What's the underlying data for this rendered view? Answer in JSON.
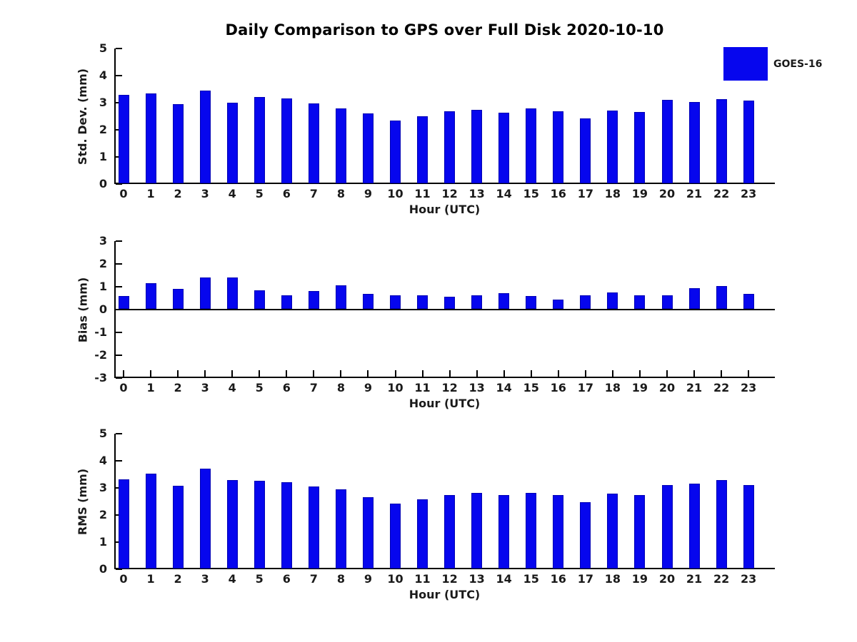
{
  "title": "Daily Comparison to GPS over Full Disk 2020-10-10",
  "legend": {
    "label": "GOES-16",
    "swatch_color": "#0606ee"
  },
  "colors": {
    "bar": "#0606ee",
    "bar_edge": "#0000b4",
    "axis": "#000000",
    "text": "#1a1a1a"
  },
  "chart_data": [
    {
      "type": "bar",
      "name": "std-dev",
      "ylabel": "Std. Dev. (mm)",
      "xlabel": "Hour (UTC)",
      "ylim": [
        0,
        5
      ],
      "yticks": [
        0,
        1,
        2,
        3,
        4,
        5
      ],
      "grid": false,
      "legend_position": "upper-right-outside",
      "categories": [
        "0",
        "1",
        "2",
        "3",
        "4",
        "5",
        "6",
        "7",
        "8",
        "9",
        "10",
        "11",
        "12",
        "13",
        "14",
        "15",
        "16",
        "17",
        "18",
        "19",
        "20",
        "21",
        "22",
        "23"
      ],
      "series": [
        {
          "name": "GOES-16",
          "values": [
            3.3,
            3.35,
            2.95,
            3.45,
            3.0,
            3.2,
            3.15,
            2.98,
            2.8,
            2.6,
            2.35,
            2.5,
            2.68,
            2.74,
            2.64,
            2.8,
            2.68,
            2.42,
            2.7,
            2.66,
            3.1,
            3.03,
            3.14,
            3.07
          ]
        }
      ]
    },
    {
      "type": "bar",
      "name": "bias",
      "ylabel": "Bias (mm)",
      "xlabel": "Hour (UTC)",
      "ylim": [
        -3,
        3
      ],
      "yticks": [
        -3,
        -2,
        -1,
        0,
        1,
        2,
        3
      ],
      "grid": false,
      "categories": [
        "0",
        "1",
        "2",
        "3",
        "4",
        "5",
        "6",
        "7",
        "8",
        "9",
        "10",
        "11",
        "12",
        "13",
        "14",
        "15",
        "16",
        "17",
        "18",
        "19",
        "20",
        "21",
        "22",
        "23"
      ],
      "series": [
        {
          "name": "GOES-16",
          "values": [
            0.58,
            1.15,
            0.9,
            1.4,
            1.4,
            0.84,
            0.64,
            0.8,
            1.07,
            0.68,
            0.62,
            0.64,
            0.57,
            0.64,
            0.73,
            0.58,
            0.45,
            0.62,
            0.76,
            0.64,
            0.62,
            0.95,
            1.04,
            0.7
          ]
        }
      ]
    },
    {
      "type": "bar",
      "name": "rms",
      "ylabel": "RMS (mm)",
      "xlabel": "Hour (UTC)",
      "ylim": [
        0,
        5
      ],
      "yticks": [
        0,
        1,
        2,
        3,
        4,
        5
      ],
      "grid": false,
      "categories": [
        "0",
        "1",
        "2",
        "3",
        "4",
        "5",
        "6",
        "7",
        "8",
        "9",
        "10",
        "11",
        "12",
        "13",
        "14",
        "15",
        "16",
        "17",
        "18",
        "19",
        "20",
        "21",
        "22",
        "23"
      ],
      "series": [
        {
          "name": "GOES-16",
          "values": [
            3.32,
            3.53,
            3.07,
            3.72,
            3.3,
            3.27,
            3.22,
            3.06,
            2.96,
            2.65,
            2.42,
            2.57,
            2.75,
            2.82,
            2.73,
            2.82,
            2.73,
            2.48,
            2.78,
            2.75,
            3.11,
            3.17,
            3.29,
            3.11
          ]
        }
      ]
    }
  ]
}
